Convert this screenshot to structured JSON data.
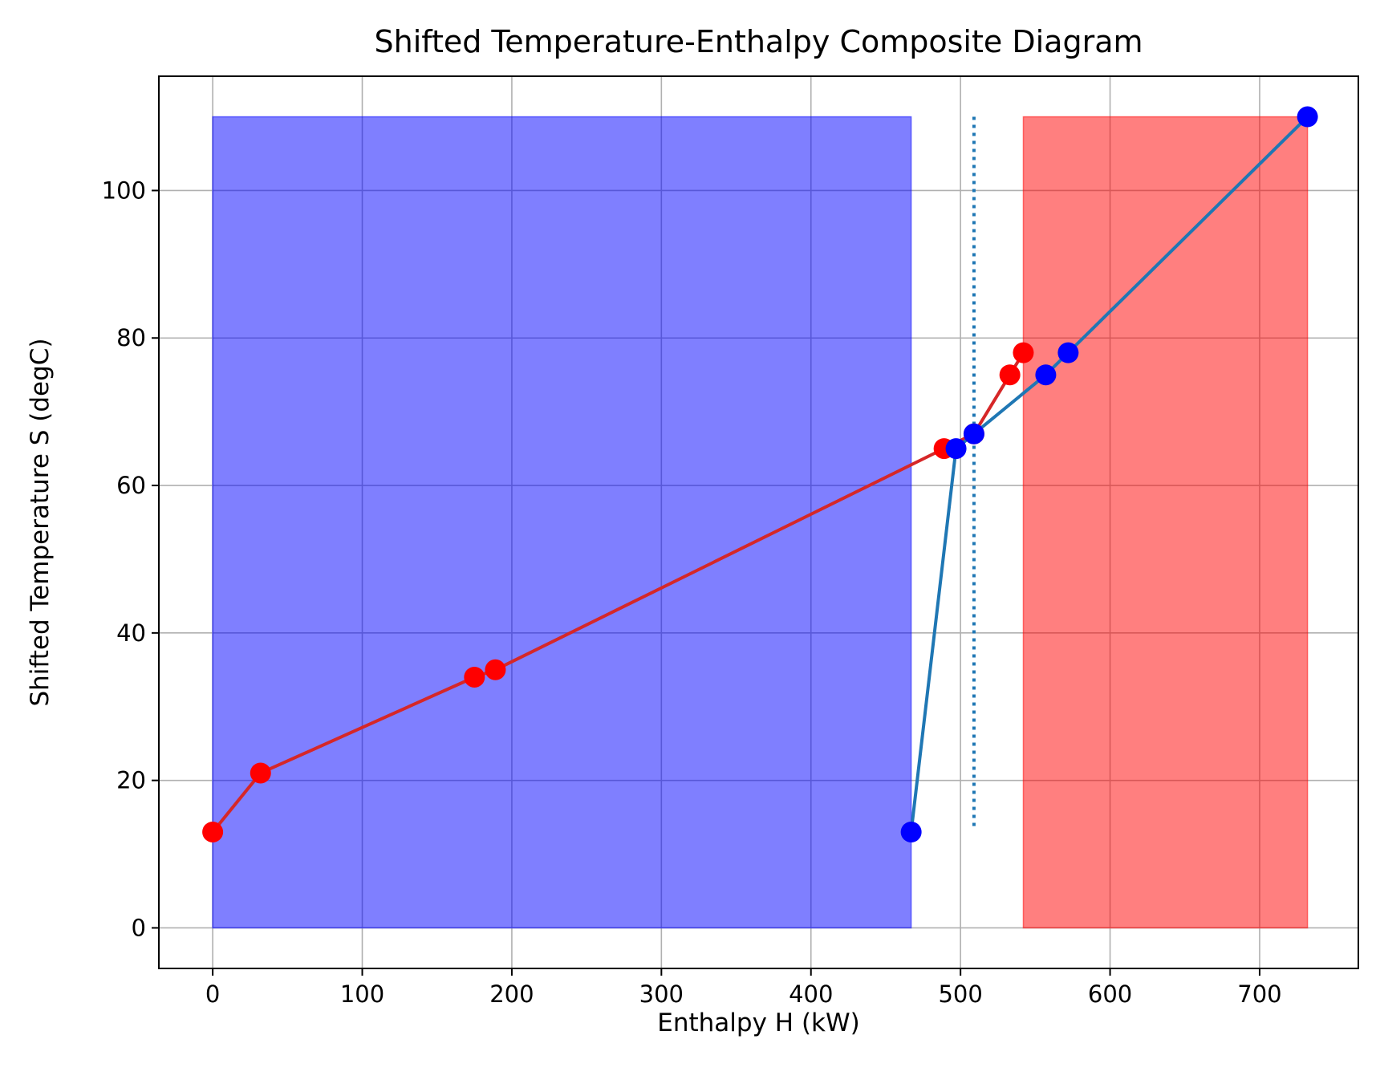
{
  "chart_data": {
    "type": "line",
    "title": "Shifted Temperature-Enthalpy Composite Diagram",
    "xlabel": "Enthalpy H (kW)",
    "ylabel": "Shifted Temperature S (degC)",
    "xlim": [
      -36,
      766
    ],
    "ylim": [
      -5.5,
      115.5
    ],
    "xticks": [
      0,
      100,
      200,
      300,
      400,
      500,
      600,
      700
    ],
    "yticks": [
      0,
      20,
      40,
      60,
      80,
      100
    ],
    "grid": true,
    "series": [
      {
        "color": "#d62728",
        "marker_color": "#ff0000",
        "points": [
          [
            0,
            13
          ],
          [
            32,
            21
          ],
          [
            175,
            34
          ],
          [
            189,
            35
          ],
          [
            489,
            65
          ],
          [
            509,
            67
          ],
          [
            533,
            75
          ],
          [
            542,
            78
          ]
        ]
      },
      {
        "color": "#1f77b4",
        "marker_color": "#0000ff",
        "points": [
          [
            467,
            13
          ],
          [
            497,
            65
          ],
          [
            509,
            67
          ],
          [
            557,
            75
          ],
          [
            572,
            78
          ],
          [
            732,
            110
          ]
        ]
      }
    ],
    "shaded_regions": [
      {
        "x": [
          0,
          467
        ],
        "y": [
          0,
          110
        ],
        "color": "#0000ff",
        "alpha": 0.5
      },
      {
        "x": [
          542,
          732
        ],
        "y": [
          0,
          110
        ],
        "color": "#ff0000",
        "alpha": 0.5
      }
    ],
    "vertical_line": {
      "x": 509,
      "y": [
        13.5,
        110
      ],
      "color": "#1f77b4",
      "style": "dotted"
    }
  }
}
